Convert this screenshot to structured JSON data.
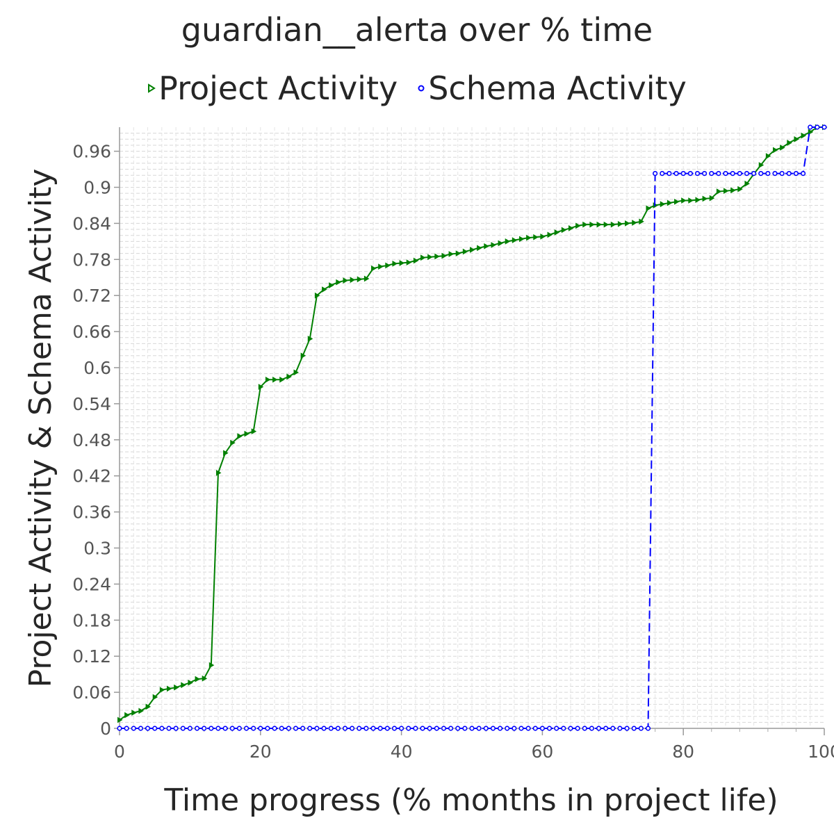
{
  "chart_data": {
    "type": "line",
    "title": "guardian__alerta over % time",
    "xlabel": "Time progress (% months in project life)",
    "ylabel": "Project Activity & Schema Activity",
    "xlim": [
      0,
      100
    ],
    "ylim": [
      0,
      1.0
    ],
    "x_ticks": [
      "0",
      "20",
      "40",
      "60",
      "80",
      "100"
    ],
    "y_ticks": [
      "0",
      "0.06",
      "0.12",
      "0.18",
      "0.24",
      "0.3",
      "0.36",
      "0.42",
      "0.48",
      "0.54",
      "0.6",
      "0.66",
      "0.72",
      "0.78",
      "0.84",
      "0.9",
      "0.96"
    ],
    "grid": true,
    "legend_position": "top-center",
    "series": [
      {
        "name": "Project Activity",
        "color": "#008000",
        "marker": "triangle-right",
        "line_style": "solid",
        "x": [
          0,
          1,
          2,
          3,
          4,
          5,
          6,
          7,
          8,
          9,
          10,
          11,
          12,
          13,
          14,
          15,
          16,
          17,
          18,
          19,
          20,
          21,
          22,
          23,
          24,
          25,
          26,
          27,
          28,
          29,
          30,
          31,
          32,
          33,
          34,
          35,
          36,
          37,
          38,
          39,
          40,
          41,
          42,
          43,
          44,
          45,
          46,
          47,
          48,
          49,
          50,
          51,
          52,
          53,
          54,
          55,
          56,
          57,
          58,
          59,
          60,
          61,
          62,
          63,
          64,
          65,
          66,
          67,
          68,
          69,
          70,
          71,
          72,
          73,
          74,
          75,
          76,
          77,
          78,
          79,
          80,
          81,
          82,
          83,
          84,
          85,
          86,
          87,
          88,
          89,
          90,
          91,
          92,
          93,
          94,
          95,
          96,
          97,
          98,
          99,
          100
        ],
        "y": [
          0.014,
          0.022,
          0.026,
          0.029,
          0.036,
          0.052,
          0.064,
          0.066,
          0.068,
          0.072,
          0.076,
          0.082,
          0.083,
          0.105,
          0.425,
          0.458,
          0.475,
          0.486,
          0.49,
          0.494,
          0.568,
          0.58,
          0.58,
          0.58,
          0.585,
          0.592,
          0.62,
          0.648,
          0.72,
          0.73,
          0.737,
          0.742,
          0.745,
          0.746,
          0.747,
          0.748,
          0.765,
          0.768,
          0.77,
          0.773,
          0.774,
          0.775,
          0.778,
          0.783,
          0.784,
          0.785,
          0.786,
          0.789,
          0.79,
          0.793,
          0.796,
          0.799,
          0.802,
          0.804,
          0.807,
          0.81,
          0.812,
          0.814,
          0.816,
          0.817,
          0.818,
          0.821,
          0.825,
          0.829,
          0.832,
          0.836,
          0.838,
          0.838,
          0.838,
          0.838,
          0.838,
          0.839,
          0.84,
          0.841,
          0.843,
          0.865,
          0.87,
          0.872,
          0.874,
          0.876,
          0.878,
          0.878,
          0.879,
          0.881,
          0.882,
          0.893,
          0.894,
          0.895,
          0.897,
          0.906,
          0.922,
          0.937,
          0.952,
          0.962,
          0.966,
          0.974,
          0.98,
          0.986,
          0.992,
          1.0,
          1.0
        ]
      },
      {
        "name": "Schema Activity",
        "color": "#0000ff",
        "marker": "circle-open",
        "line_style": "dashed",
        "x": [
          0,
          1,
          2,
          3,
          4,
          5,
          6,
          7,
          8,
          9,
          10,
          11,
          12,
          13,
          14,
          15,
          16,
          17,
          18,
          19,
          20,
          21,
          22,
          23,
          24,
          25,
          26,
          27,
          28,
          29,
          30,
          31,
          32,
          33,
          34,
          35,
          36,
          37,
          38,
          39,
          40,
          41,
          42,
          43,
          44,
          45,
          46,
          47,
          48,
          49,
          50,
          51,
          52,
          53,
          54,
          55,
          56,
          57,
          58,
          59,
          60,
          61,
          62,
          63,
          64,
          65,
          66,
          67,
          68,
          69,
          70,
          71,
          72,
          73,
          74,
          75,
          76,
          77,
          78,
          79,
          80,
          81,
          82,
          83,
          84,
          85,
          86,
          87,
          88,
          89,
          90,
          91,
          92,
          93,
          94,
          95,
          96,
          97,
          98,
          99,
          100
        ],
        "y": [
          0,
          0,
          0,
          0,
          0,
          0,
          0,
          0,
          0,
          0,
          0,
          0,
          0,
          0,
          0,
          0,
          0,
          0,
          0,
          0,
          0,
          0,
          0,
          0,
          0,
          0,
          0,
          0,
          0,
          0,
          0,
          0,
          0,
          0,
          0,
          0,
          0,
          0,
          0,
          0,
          0,
          0,
          0,
          0,
          0,
          0,
          0,
          0,
          0,
          0,
          0,
          0,
          0,
          0,
          0,
          0,
          0,
          0,
          0,
          0,
          0,
          0,
          0,
          0,
          0,
          0,
          0,
          0,
          0,
          0,
          0,
          0,
          0,
          0,
          0,
          0,
          0.923,
          0.923,
          0.923,
          0.923,
          0.923,
          0.923,
          0.923,
          0.923,
          0.923,
          0.923,
          0.923,
          0.923,
          0.923,
          0.923,
          0.923,
          0.923,
          0.923,
          0.923,
          0.923,
          0.923,
          0.923,
          0.923,
          1.0,
          1.0,
          1.0
        ]
      }
    ]
  }
}
